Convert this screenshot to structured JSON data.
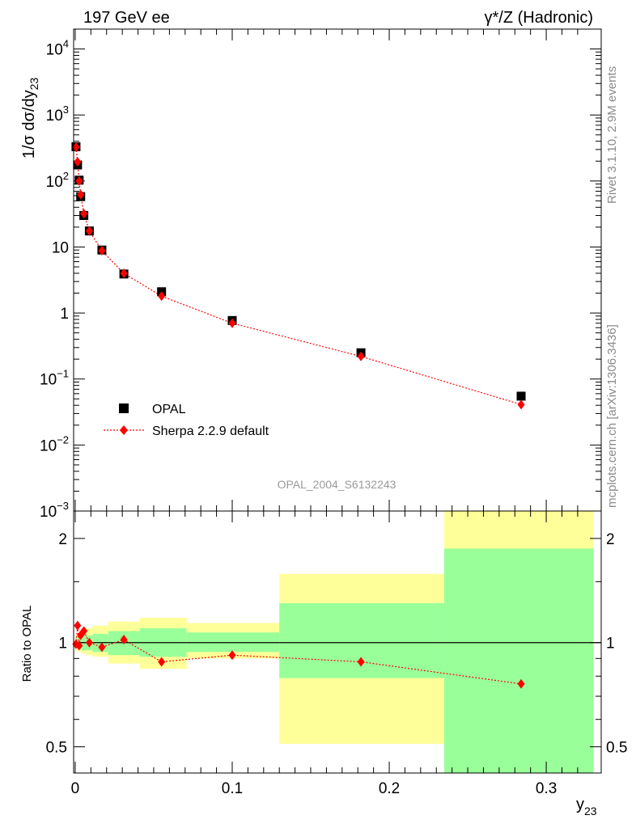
{
  "header": {
    "left": "197 GeV ee",
    "right": "γ*/Z (Hadronic)"
  },
  "side_labels": {
    "rivet": "Rivet 3.1.10,  2.9M events",
    "mcplots": "mcplots.cern.ch [arXiv:1306.3436]"
  },
  "watermark": "OPAL_2004_S6132243",
  "colors": {
    "data": "#000000",
    "mc": "#ff0000",
    "band_inner": "#99ff99",
    "band_outer": "#ffff99"
  },
  "chart_data": [
    {
      "type": "scatter",
      "yscale": "log",
      "ylim": [
        0.001,
        20000
      ],
      "xlim": [
        -0.001,
        0.335
      ],
      "ylabel": "1/σ dσ/dy",
      "ylabel_sub": "23",
      "y_ticks": [
        {
          "value": 0.001,
          "base": "10",
          "exp": "−3"
        },
        {
          "value": 0.01,
          "base": "10",
          "exp": "−2"
        },
        {
          "value": 0.1,
          "base": "10",
          "exp": "−1"
        },
        {
          "value": 1,
          "base": "1",
          "exp": ""
        },
        {
          "value": 10,
          "base": "10",
          "exp": ""
        },
        {
          "value": 100,
          "base": "10",
          "exp": "2"
        },
        {
          "value": 1000,
          "base": "10",
          "exp": "3"
        },
        {
          "value": 10000,
          "base": "10",
          "exp": "4"
        }
      ],
      "legend_position": "lower-left",
      "series": [
        {
          "name": "OPAL",
          "marker": "square",
          "x": [
            0.0005,
            0.0015,
            0.0025,
            0.0035,
            0.0055,
            0.009,
            0.017,
            0.031,
            0.055,
            0.1,
            0.182,
            0.284
          ],
          "y": [
            330,
            175,
            103,
            58,
            30,
            17.5,
            9.0,
            3.9,
            2.1,
            0.77,
            0.25,
            0.055
          ]
        },
        {
          "name": "Sherpa 2.2.9 default",
          "marker": "diamond",
          "line": "dotted",
          "x": [
            0.0005,
            0.0015,
            0.0025,
            0.0035,
            0.0055,
            0.009,
            0.017,
            0.031,
            0.055,
            0.1,
            0.182,
            0.284
          ],
          "y": [
            325,
            195,
            100,
            62,
            32,
            17.5,
            8.8,
            4.0,
            1.8,
            0.7,
            0.22,
            0.041
          ]
        }
      ]
    },
    {
      "type": "scatter",
      "ylabel": "Ratio to OPAL",
      "xlabel": "y",
      "xlabel_sub": "23",
      "yscale": "log",
      "ylim": [
        0.42,
        2.4
      ],
      "xlim": [
        -0.001,
        0.335
      ],
      "y_ticks": [
        0.5,
        1,
        2
      ],
      "y_tick_labels": [
        "0.5",
        "1",
        "2"
      ],
      "x_ticks": [
        0,
        0.1,
        0.2,
        0.3
      ],
      "x_tick_labels": [
        "0",
        "0.1",
        "0.2",
        "0.3"
      ],
      "reference_line": 1,
      "bands": [
        {
          "x0": 0.0,
          "x1": 0.001,
          "inner": [
            0.96,
            1.04
          ],
          "outer": [
            0.94,
            1.06
          ]
        },
        {
          "x0": 0.001,
          "x1": 0.002,
          "inner": [
            0.97,
            1.03
          ],
          "outer": [
            0.95,
            1.05
          ]
        },
        {
          "x0": 0.002,
          "x1": 0.003,
          "inner": [
            0.96,
            1.04
          ],
          "outer": [
            0.94,
            1.06
          ]
        },
        {
          "x0": 0.003,
          "x1": 0.004,
          "inner": [
            0.96,
            1.04
          ],
          "outer": [
            0.94,
            1.07
          ]
        },
        {
          "x0": 0.004,
          "x1": 0.007,
          "inner": [
            0.95,
            1.05
          ],
          "outer": [
            0.93,
            1.08
          ]
        },
        {
          "x0": 0.007,
          "x1": 0.011,
          "inner": [
            0.95,
            1.05
          ],
          "outer": [
            0.92,
            1.1
          ]
        },
        {
          "x0": 0.011,
          "x1": 0.021,
          "inner": [
            0.94,
            1.06
          ],
          "outer": [
            0.91,
            1.12
          ]
        },
        {
          "x0": 0.021,
          "x1": 0.041,
          "inner": [
            0.92,
            1.08
          ],
          "outer": [
            0.87,
            1.15
          ]
        },
        {
          "x0": 0.041,
          "x1": 0.071,
          "inner": [
            0.91,
            1.1
          ],
          "outer": [
            0.84,
            1.18
          ]
        },
        {
          "x0": 0.071,
          "x1": 0.13,
          "inner": [
            0.94,
            1.07
          ],
          "outer": [
            0.9,
            1.14
          ]
        },
        {
          "x0": 0.13,
          "x1": 0.235,
          "inner": [
            0.79,
            1.3
          ],
          "outer": [
            0.51,
            1.58
          ]
        },
        {
          "x0": 0.235,
          "x1": 0.33,
          "inner": [
            0.42,
            1.87
          ],
          "outer": [
            0.42,
            2.4
          ]
        }
      ],
      "series": [
        {
          "name": "Sherpa 2.2.9 default",
          "marker": "diamond",
          "line": "dotted",
          "x": [
            0.0005,
            0.0015,
            0.0025,
            0.0035,
            0.0055,
            0.009,
            0.017,
            0.031,
            0.055,
            0.1,
            0.182,
            0.284
          ],
          "y": [
            0.99,
            1.12,
            0.98,
            1.05,
            1.08,
            1.0,
            0.97,
            1.02,
            0.88,
            0.92,
            0.88,
            0.76
          ]
        }
      ]
    }
  ]
}
